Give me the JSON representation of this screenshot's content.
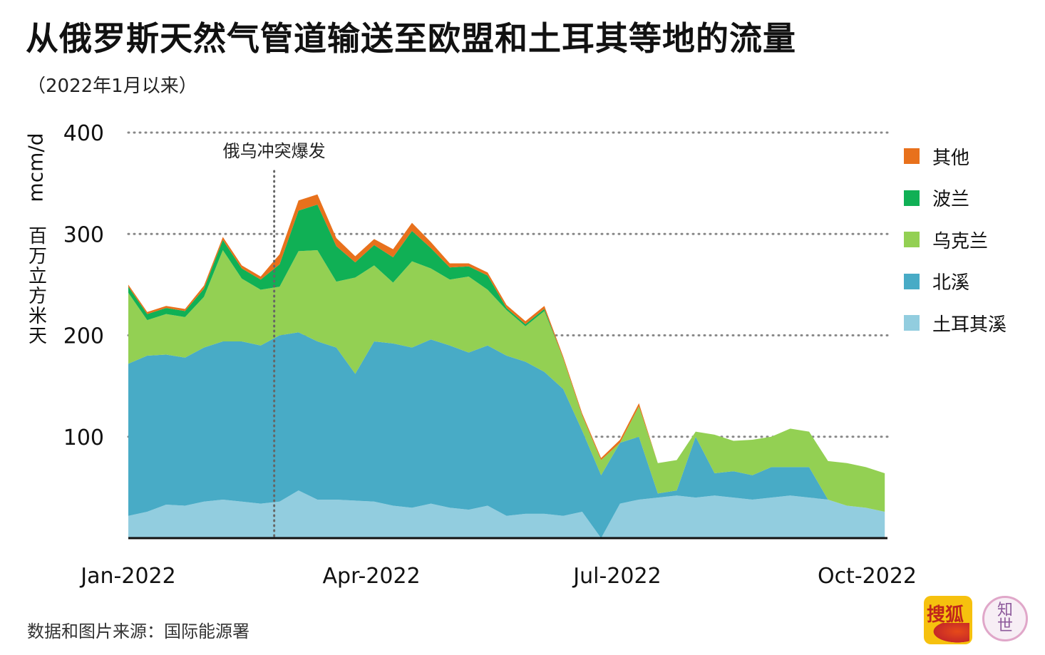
{
  "title": "从俄罗斯天然气管道输送至欧盟和土耳其等地的流量",
  "subtitle": "（2022年1月以来）",
  "yaxis_unit": "mcm/d",
  "yaxis_cn": "百万立方米天",
  "source": "数据和图片来源：国际能源署",
  "logos": {
    "sohu": "搜狐",
    "zhishi": "知世"
  },
  "colors": {
    "other": "#e8711c",
    "poland": "#10b055",
    "ukraine": "#93d053",
    "nordstream": "#48abc6",
    "turkstream": "#92cddf",
    "grid": "#888888",
    "axis": "#111111"
  },
  "chart_data": {
    "type": "area",
    "stacked": true,
    "ylim": [
      0,
      400
    ],
    "yticks": [
      100,
      200,
      300,
      400
    ],
    "xticks": [
      {
        "date": "2022-01-01",
        "label": "Jan-2022"
      },
      {
        "date": "2022-04-01",
        "label": "Apr-2022"
      },
      {
        "date": "2022-07-01",
        "label": "Jul-2022"
      },
      {
        "date": "2022-10-01",
        "label": "Oct-2022"
      }
    ],
    "xlim": [
      "2022-01-01",
      "2022-10-09"
    ],
    "grid": "horizontal dotted",
    "legend": "right",
    "annotation": {
      "date": "2022-02-24",
      "text": "俄乌冲突爆发"
    },
    "x": [
      "2022-01-01",
      "2022-01-08",
      "2022-01-15",
      "2022-01-22",
      "2022-01-29",
      "2022-02-05",
      "2022-02-12",
      "2022-02-19",
      "2022-02-26",
      "2022-03-05",
      "2022-03-12",
      "2022-03-19",
      "2022-03-26",
      "2022-04-02",
      "2022-04-09",
      "2022-04-16",
      "2022-04-23",
      "2022-04-30",
      "2022-05-07",
      "2022-05-14",
      "2022-05-21",
      "2022-05-28",
      "2022-06-04",
      "2022-06-11",
      "2022-06-18",
      "2022-06-25",
      "2022-07-02",
      "2022-07-09",
      "2022-07-16",
      "2022-07-23",
      "2022-07-30",
      "2022-08-06",
      "2022-08-13",
      "2022-08-20",
      "2022-08-27",
      "2022-09-03",
      "2022-09-10",
      "2022-09-17",
      "2022-09-24",
      "2022-10-01",
      "2022-10-08"
    ],
    "series": [
      {
        "name": "土耳其溪",
        "key": "turkstream",
        "values": [
          22,
          26,
          33,
          32,
          36,
          38,
          36,
          34,
          36,
          47,
          38,
          38,
          37,
          36,
          32,
          30,
          34,
          30,
          28,
          32,
          22,
          24,
          24,
          22,
          26,
          0,
          34,
          38,
          40,
          42,
          40,
          42,
          40,
          38,
          40,
          42,
          40,
          38,
          32,
          30,
          26
        ]
      },
      {
        "name": "北溪",
        "key": "nordstream",
        "values": [
          150,
          154,
          148,
          146,
          152,
          156,
          158,
          156,
          164,
          156,
          156,
          150,
          125,
          158,
          160,
          158,
          162,
          160,
          155,
          158,
          158,
          150,
          140,
          125,
          80,
          62,
          60,
          62,
          4,
          5,
          60,
          22,
          26,
          24,
          30,
          28,
          30,
          0,
          0,
          0,
          0
        ]
      },
      {
        "name": "乌克兰",
        "key": "ukraine",
        "values": [
          70,
          35,
          40,
          40,
          50,
          90,
          62,
          55,
          48,
          80,
          90,
          65,
          95,
          75,
          60,
          85,
          70,
          65,
          75,
          55,
          45,
          35,
          60,
          30,
          15,
          15,
          0,
          30,
          30,
          30,
          5,
          38,
          30,
          35,
          30,
          38,
          35,
          38,
          42,
          40,
          38
        ]
      },
      {
        "name": "波兰",
        "key": "poland",
        "values": [
          6,
          6,
          6,
          6,
          8,
          10,
          10,
          10,
          22,
          40,
          45,
          35,
          15,
          20,
          25,
          30,
          20,
          12,
          10,
          14,
          2,
          2,
          2,
          0,
          0,
          0,
          0,
          0,
          0,
          0,
          0,
          0,
          0,
          0,
          0,
          0,
          0,
          0,
          0,
          0,
          0
        ]
      },
      {
        "name": "其他",
        "key": "other",
        "values": [
          2,
          2,
          2,
          2,
          3,
          3,
          3,
          3,
          10,
          10,
          10,
          8,
          6,
          6,
          8,
          8,
          6,
          4,
          3,
          3,
          3,
          3,
          3,
          2,
          2,
          2,
          3,
          3,
          0,
          0,
          0,
          0,
          0,
          0,
          0,
          0,
          0,
          0,
          0,
          0,
          0
        ]
      }
    ]
  },
  "legend": [
    {
      "key": "other",
      "label": "其他"
    },
    {
      "key": "poland",
      "label": "波兰"
    },
    {
      "key": "ukraine",
      "label": "乌克兰"
    },
    {
      "key": "nordstream",
      "label": "北溪"
    },
    {
      "key": "turkstream",
      "label": "土耳其溪"
    }
  ]
}
